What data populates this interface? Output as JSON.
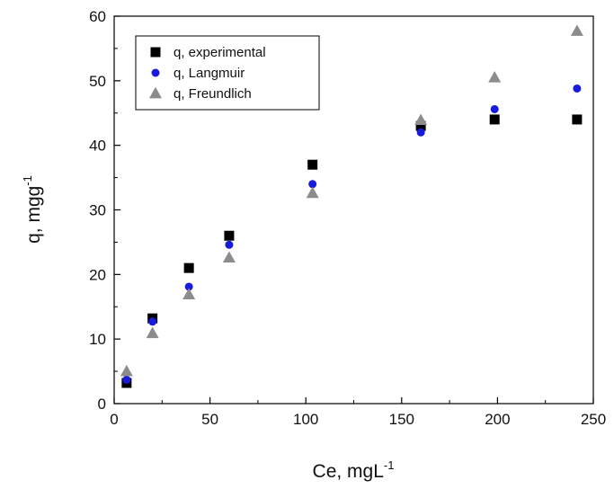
{
  "chart_data": {
    "type": "scatter",
    "xlabel": {
      "main": "Ce, mgL",
      "sup": "-1"
    },
    "ylabel": {
      "main": "q, mgg",
      "sup": "-1"
    },
    "xlim": [
      0,
      250
    ],
    "ylim": [
      0,
      60
    ],
    "xticks": [
      0,
      50,
      100,
      150,
      200,
      250
    ],
    "yticks": [
      0,
      10,
      20,
      30,
      40,
      50,
      60
    ],
    "grid": false,
    "legend_position": "top-left",
    "series": [
      {
        "name": "q, experimental",
        "marker": "square",
        "color": "#000000",
        "points": [
          {
            "x": 6.5,
            "y": 3.2
          },
          {
            "x": 20,
            "y": 13.2
          },
          {
            "x": 39,
            "y": 21
          },
          {
            "x": 60,
            "y": 26
          },
          {
            "x": 103.5,
            "y": 37
          },
          {
            "x": 160,
            "y": 43
          },
          {
            "x": 198.5,
            "y": 44
          },
          {
            "x": 241.5,
            "y": 44
          }
        ]
      },
      {
        "name": "q, Langmuir",
        "marker": "circle",
        "color": "#1a1adc",
        "points": [
          {
            "x": 6.5,
            "y": 3.7
          },
          {
            "x": 20,
            "y": 12.7
          },
          {
            "x": 39,
            "y": 18.1
          },
          {
            "x": 60,
            "y": 24.6
          },
          {
            "x": 103.5,
            "y": 34
          },
          {
            "x": 160,
            "y": 42
          },
          {
            "x": 198.5,
            "y": 45.6
          },
          {
            "x": 241.5,
            "y": 48.8
          }
        ]
      },
      {
        "name": "q, Freundlich",
        "marker": "triangle",
        "color": "#8c8c8c",
        "points": [
          {
            "x": 6.5,
            "y": 5
          },
          {
            "x": 20,
            "y": 10.9
          },
          {
            "x": 39,
            "y": 16.9
          },
          {
            "x": 60,
            "y": 22.6
          },
          {
            "x": 103.5,
            "y": 32.6
          },
          {
            "x": 160,
            "y": 43.9
          },
          {
            "x": 198.5,
            "y": 50.5
          },
          {
            "x": 241.5,
            "y": 57.7
          }
        ]
      }
    ]
  }
}
